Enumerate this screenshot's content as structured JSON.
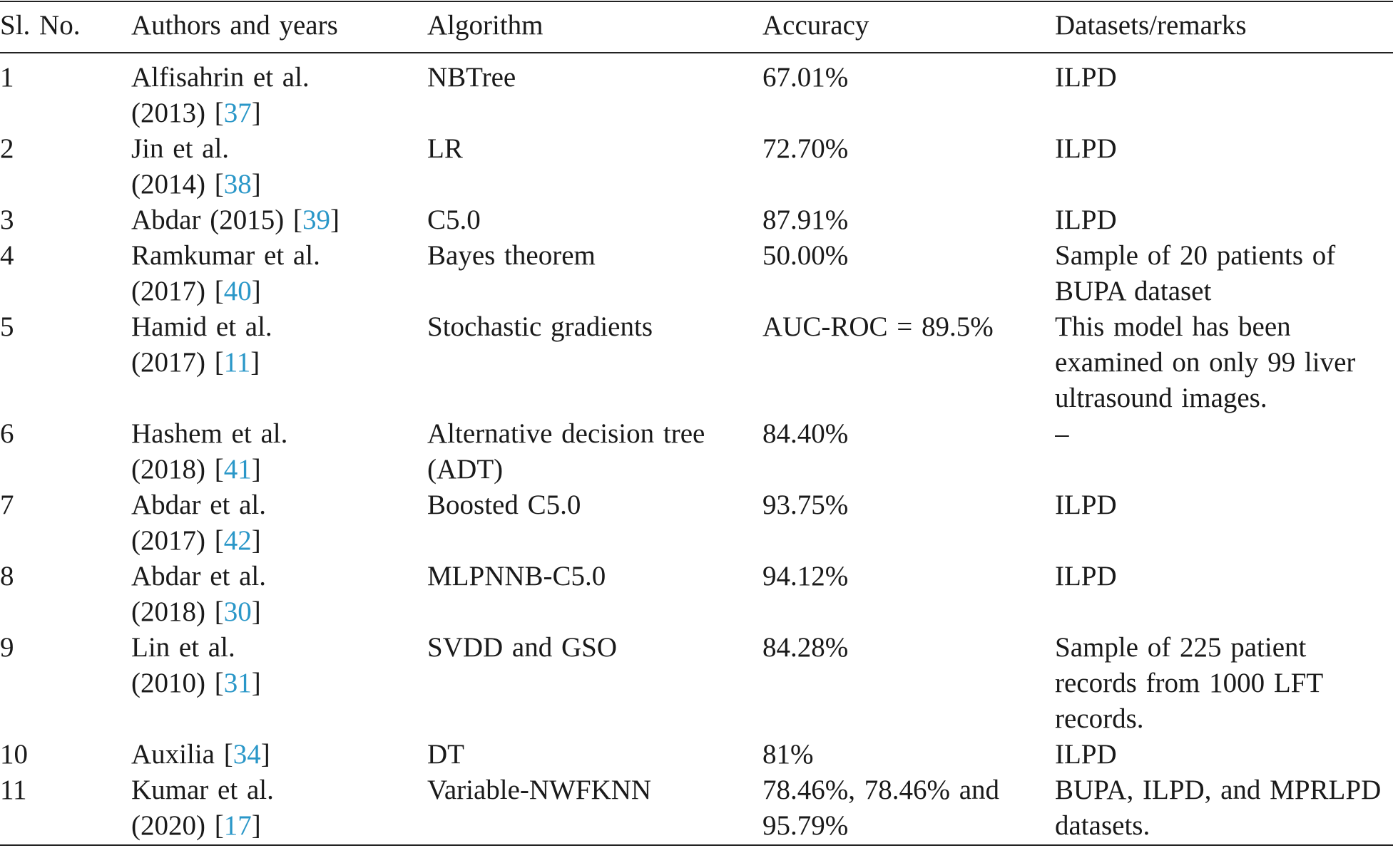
{
  "table": {
    "headers": [
      "Sl. No.",
      "Authors and years",
      "Algorithm",
      "Accuracy",
      "Datasets/remarks"
    ],
    "rows": [
      {
        "no": "1",
        "author_line1": "Alfisahrin et al.",
        "author_line2": "(2013) [",
        "ref": "37",
        "close": "]",
        "algorithm": "NBTree",
        "accuracy": "67.01%",
        "remarks": "ILPD"
      },
      {
        "no": "2",
        "author_line1": "Jin et al.",
        "author_line2": "(2014) [",
        "ref": "38",
        "close": "]",
        "algorithm": "LR",
        "accuracy": "72.70%",
        "remarks": "ILPD"
      },
      {
        "no": "3",
        "author_line1": "Abdar (2015) [",
        "author_line2": "",
        "ref": "39",
        "close": "]",
        "algorithm": "C5.0",
        "accuracy": "87.91%",
        "remarks": "ILPD"
      },
      {
        "no": "4",
        "author_line1": "Ramkumar et al.",
        "author_line2": "(2017) [",
        "ref": "40",
        "close": "]",
        "algorithm": "Bayes theorem",
        "accuracy": "50.00%",
        "remarks": "Sample of 20 patients of BUPA dataset"
      },
      {
        "no": "5",
        "author_line1": "Hamid et al.",
        "author_line2": "(2017) [",
        "ref": "11",
        "close": "]",
        "algorithm": "Stochastic gradients",
        "accuracy": "AUC-ROC = 89.5%",
        "remarks": "This model has been examined on only 99 liver ultrasound images."
      },
      {
        "no": "6",
        "author_line1": "Hashem et al.",
        "author_line2": "(2018) [",
        "ref": "41",
        "close": "]",
        "algorithm": "Alternative decision tree (ADT)",
        "accuracy": "84.40%",
        "remarks": "–"
      },
      {
        "no": "7",
        "author_line1": "Abdar et al.",
        "author_line2": "(2017) [",
        "ref": "42",
        "close": "]",
        "algorithm": "Boosted C5.0",
        "accuracy": "93.75%",
        "remarks": "ILPD"
      },
      {
        "no": "8",
        "author_line1": "Abdar et al.",
        "author_line2": "(2018) [",
        "ref": "30",
        "close": "]",
        "algorithm": "MLPNNB-C5.0",
        "accuracy": "94.12%",
        "remarks": "ILPD"
      },
      {
        "no": "9",
        "author_line1": "Lin et al.",
        "author_line2": "(2010) [",
        "ref": "31",
        "close": "]",
        "algorithm": "SVDD and GSO",
        "accuracy": "84.28%",
        "remarks": "Sample of 225 patient records from 1000 LFT records."
      },
      {
        "no": "10",
        "author_line1": "Auxilia [",
        "author_line2": "",
        "ref": "34",
        "close": "]",
        "algorithm": "DT",
        "accuracy": "81%",
        "remarks": "ILPD"
      },
      {
        "no": "11",
        "author_line1": "Kumar et al.",
        "author_line2": "(2020) [",
        "ref": "17",
        "close": "]",
        "algorithm": "Variable-NWFKNN",
        "accuracy": "78.46%, 78.46% and 95.79%",
        "remarks": "BUPA, ILPD, and MPRLPD datasets."
      }
    ]
  },
  "colors": {
    "text": "#1a1a1a",
    "reference_link": "#2a97c8",
    "rule": "#222222"
  }
}
